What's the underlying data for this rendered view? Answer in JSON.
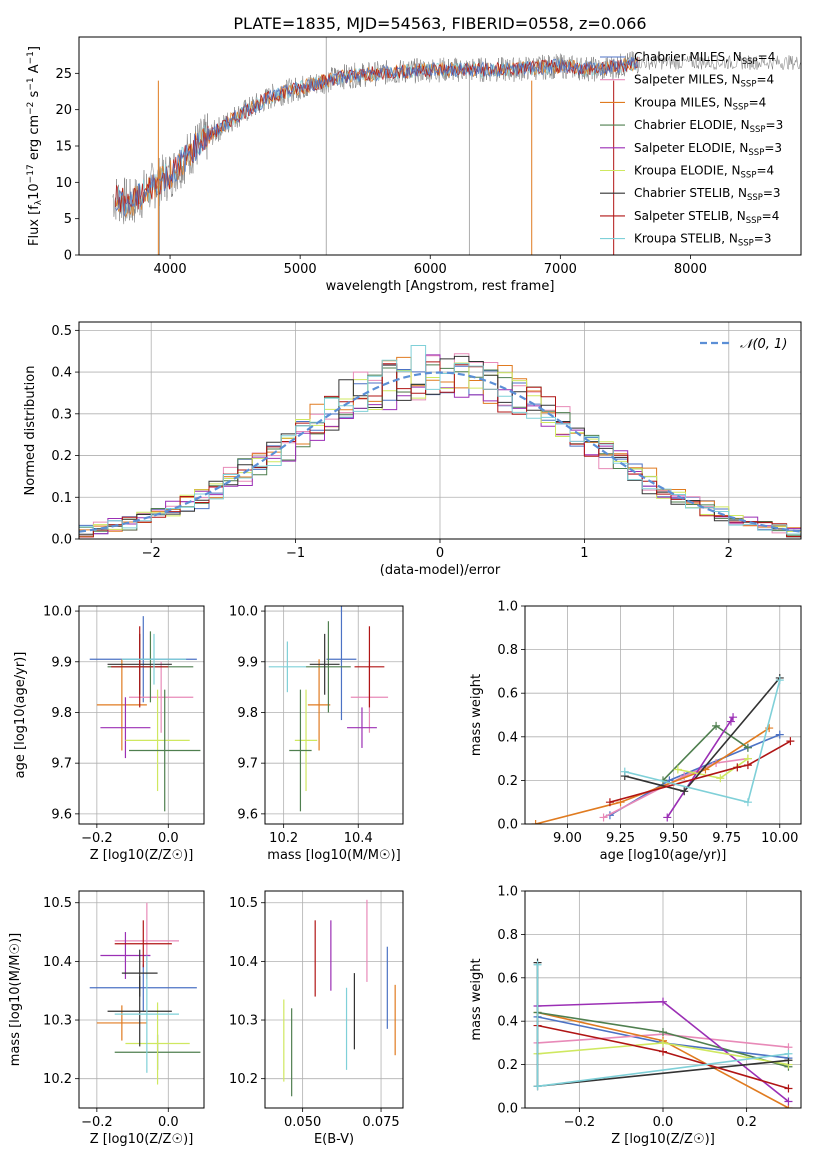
{
  "title": "PLATE=1835, MJD=54563, FIBERID=0558, z=0.066",
  "colors": {
    "Chabrier MILES": "#4c72c4",
    "Salpeter MILES": "#e88ab8",
    "Kroupa MILES": "#e07b20",
    "Chabrier ELODIE": "#4f7f4f",
    "Salpeter ELODIE": "#9b2fb5",
    "Kroupa ELODIE": "#cfe860",
    "Chabrier STELIB": "#333333",
    "Salpeter STELIB": "#b01515",
    "Kroupa STELIB": "#7fd0d8"
  },
  "chart_data": [
    {
      "id": "spectrum",
      "type": "line",
      "xlabel": "wavelength [Angstrom, rest frame]",
      "ylabel": "Flux [f_λ 10^-17 erg cm^-2 s^-1 A^-1]",
      "xlim": [
        3300,
        8850
      ],
      "ylim": [
        0,
        30
      ],
      "xticks": [
        4000,
        5000,
        6000,
        7000,
        8000
      ],
      "yticks": [
        0,
        5,
        10,
        15,
        20,
        25
      ],
      "legend": [
        {
          "name": "Chabrier MILES",
          "nssp": "4"
        },
        {
          "name": "Salpeter MILES",
          "nssp": "4"
        },
        {
          "name": "Kroupa MILES",
          "nssp": "4"
        },
        {
          "name": "Chabrier ELODIE",
          "nssp": "3"
        },
        {
          "name": "Salpeter ELODIE",
          "nssp": "3"
        },
        {
          "name": "Kroupa ELODIE",
          "nssp": "4"
        },
        {
          "name": "Chabrier STELIB",
          "nssp": "3"
        },
        {
          "name": "Salpeter STELIB",
          "nssp": "4"
        },
        {
          "name": "Kroupa STELIB",
          "nssp": "3"
        }
      ],
      "legend_nssp_label": "N",
      "legend_nssp_sub": "SSP",
      "continuum_x": [
        3560,
        3700,
        3900,
        4000,
        4200,
        4500,
        4800,
        5000,
        5300,
        5600,
        6000,
        6300,
        6600,
        7000,
        7300,
        7600
      ],
      "continuum_y": [
        8,
        7,
        10,
        11,
        15,
        19,
        22,
        23,
        24.5,
        25,
        25.5,
        25.5,
        25.5,
        26,
        25.5,
        26.5
      ]
    },
    {
      "id": "residuals",
      "type": "histogram",
      "xlabel": "(data-model)/error",
      "ylabel": "Normed distribution",
      "xlim": [
        -2.5,
        2.5
      ],
      "ylim": [
        0,
        0.52
      ],
      "xticks": [
        -2,
        -1,
        0,
        1,
        2
      ],
      "yticks": [
        0.0,
        0.1,
        0.2,
        0.3,
        0.4,
        0.5
      ],
      "grid": true,
      "legend": "N(0,1)",
      "bin_width": 0.1,
      "bin_start": -2.5,
      "series_order": [
        "Chabrier MILES",
        "Salpeter MILES",
        "Kroupa MILES",
        "Chabrier ELODIE",
        "Salpeter ELODIE",
        "Kroupa ELODIE",
        "Chabrier STELIB",
        "Salpeter STELIB",
        "Kroupa STELIB"
      ]
    },
    {
      "id": "age-vs-Z",
      "type": "errorbar",
      "xlabel": "Z [log10(Z/Z☉)]",
      "ylabel": "age [log10(age/yr)]",
      "xlim": [
        -0.25,
        0.1
      ],
      "ylim": [
        9.58,
        10.01
      ],
      "xticks": [
        -0.2,
        0.0
      ],
      "yticks": [
        9.6,
        9.7,
        9.8,
        9.9,
        10.0
      ],
      "points": [
        {
          "series": "Chabrier MILES",
          "x": -0.07,
          "xerr": 0.15,
          "y": 9.905,
          "yerr": 0.085
        },
        {
          "series": "Salpeter MILES",
          "x": -0.02,
          "xerr": 0.09,
          "y": 9.83,
          "yerr": 0.07
        },
        {
          "series": "Kroupa MILES",
          "x": -0.13,
          "xerr": 0.07,
          "y": 9.815,
          "yerr": 0.09
        },
        {
          "series": "Chabrier ELODIE",
          "x": -0.05,
          "xerr": 0.12,
          "y": 9.89,
          "yerr": 0.07
        },
        {
          "series": "Salpeter ELODIE",
          "x": -0.12,
          "xerr": 0.07,
          "y": 9.77,
          "yerr": 0.06
        },
        {
          "series": "Kroupa ELODIE",
          "x": -0.03,
          "xerr": 0.09,
          "y": 9.745,
          "yerr": 0.1
        },
        {
          "series": "Chabrier STELIB",
          "x": -0.08,
          "xerr": 0.09,
          "y": 9.895,
          "yerr": 0.06
        },
        {
          "series": "Salpeter STELIB",
          "x": -0.08,
          "xerr": 0.08,
          "y": 9.89,
          "yerr": 0.08
        },
        {
          "series": "Kroupa STELIB",
          "x": -0.04,
          "xerr": 0.09,
          "y": 9.905,
          "yerr": 0.05
        },
        {
          "series": "Chabrier ELODIE",
          "x": -0.01,
          "xerr": 0.1,
          "y": 9.725,
          "yerr": 0.12
        }
      ]
    },
    {
      "id": "age-vs-mass",
      "type": "errorbar",
      "xlabel": "mass [log10(M/M☉)]",
      "ylabel": "",
      "xlim": [
        10.15,
        10.52
      ],
      "ylim": [
        9.58,
        10.01
      ],
      "xticks": [
        10.2,
        10.4
      ],
      "yticks": [
        9.6,
        9.7,
        9.8,
        9.9,
        10.0
      ],
      "points": [
        {
          "series": "Chabrier MILES",
          "x": 10.355,
          "xerr": 0.04,
          "y": 9.905,
          "yerr": 0.12
        },
        {
          "series": "Salpeter MILES",
          "x": 10.43,
          "xerr": 0.05,
          "y": 9.83,
          "yerr": 0.07
        },
        {
          "series": "Kroupa MILES",
          "x": 10.295,
          "xerr": 0.03,
          "y": 9.815,
          "yerr": 0.09
        },
        {
          "series": "Chabrier ELODIE",
          "x": 10.32,
          "xerr": 0.06,
          "y": 9.89,
          "yerr": 0.09
        },
        {
          "series": "Salpeter ELODIE",
          "x": 10.41,
          "xerr": 0.04,
          "y": 9.77,
          "yerr": 0.04
        },
        {
          "series": "Kroupa ELODIE",
          "x": 10.26,
          "xerr": 0.03,
          "y": 9.745,
          "yerr": 0.1
        },
        {
          "series": "Chabrier STELIB",
          "x": 10.31,
          "xerr": 0.04,
          "y": 9.895,
          "yerr": 0.06
        },
        {
          "series": "Salpeter STELIB",
          "x": 10.43,
          "xerr": 0.04,
          "y": 9.89,
          "yerr": 0.08
        },
        {
          "series": "Kroupa STELIB",
          "x": 10.21,
          "xerr": 0.05,
          "y": 9.89,
          "yerr": 0.05
        },
        {
          "series": "Chabrier ELODIE",
          "x": 10.245,
          "xerr": 0.03,
          "y": 9.725,
          "yerr": 0.12
        }
      ]
    },
    {
      "id": "weight-vs-age",
      "type": "line",
      "xlabel": "age [log10(age/yr)]",
      "ylabel": "mass weight",
      "xlim": [
        8.8,
        10.1
      ],
      "ylim": [
        0,
        1
      ],
      "xticks": [
        9.0,
        9.25,
        9.5,
        9.75,
        10.0
      ],
      "yticks": [
        0.0,
        0.2,
        0.4,
        0.6,
        0.8,
        1.0
      ],
      "grid": true,
      "series": [
        {
          "name": "Chabrier MILES",
          "x": [
            9.2,
            9.48,
            9.85,
            10.0
          ],
          "y": [
            0.04,
            0.2,
            0.35,
            0.41
          ]
        },
        {
          "name": "Salpeter MILES",
          "x": [
            9.17,
            9.55,
            9.7,
            9.85
          ],
          "y": [
            0.03,
            0.22,
            0.28,
            0.3
          ]
        },
        {
          "name": "Kroupa MILES",
          "x": [
            8.85,
            9.25,
            9.65,
            9.95
          ],
          "y": [
            0.0,
            0.1,
            0.25,
            0.44
          ]
        },
        {
          "name": "Chabrier ELODIE",
          "x": [
            9.45,
            9.7,
            9.85
          ],
          "y": [
            0.2,
            0.45,
            0.35
          ]
        },
        {
          "name": "Salpeter ELODIE",
          "x": [
            9.47,
            9.78,
            9.77
          ],
          "y": [
            0.03,
            0.49,
            0.47
          ]
        },
        {
          "name": "Kroupa ELODIE",
          "x": [
            9.52,
            9.72,
            9.85
          ],
          "y": [
            0.25,
            0.21,
            0.3
          ]
        },
        {
          "name": "Chabrier STELIB",
          "x": [
            9.27,
            9.55,
            10.0
          ],
          "y": [
            0.22,
            0.15,
            0.67
          ]
        },
        {
          "name": "Salpeter STELIB",
          "x": [
            9.2,
            9.8,
            9.85,
            10.05
          ],
          "y": [
            0.1,
            0.26,
            0.27,
            0.38
          ]
        },
        {
          "name": "Kroupa STELIB",
          "x": [
            9.27,
            9.85,
            10.0
          ],
          "y": [
            0.24,
            0.1,
            0.66
          ]
        }
      ]
    },
    {
      "id": "mass-vs-Z",
      "type": "errorbar",
      "xlabel": "Z [log10(Z/Z☉)]",
      "ylabel": "mass [log10(M/M☉)]",
      "xlim": [
        -0.25,
        0.1
      ],
      "ylim": [
        10.15,
        10.52
      ],
      "xticks": [
        -0.2,
        0.0
      ],
      "yticks": [
        10.2,
        10.3,
        10.4,
        10.5
      ],
      "points": [
        {
          "series": "Chabrier MILES",
          "x": -0.07,
          "xerr": 0.15,
          "y": 10.355,
          "yerr": 0.04
        },
        {
          "series": "Salpeter MILES",
          "x": -0.06,
          "xerr": 0.09,
          "y": 10.435,
          "yerr": 0.065
        },
        {
          "series": "Kroupa MILES",
          "x": -0.13,
          "xerr": 0.07,
          "y": 10.295,
          "yerr": 0.03
        },
        {
          "series": "Chabrier ELODIE",
          "x": -0.03,
          "xerr": 0.12,
          "y": 10.245,
          "yerr": 0.03
        },
        {
          "series": "Salpeter ELODIE",
          "x": -0.12,
          "xerr": 0.07,
          "y": 10.41,
          "yerr": 0.04
        },
        {
          "series": "Kroupa ELODIE",
          "x": -0.03,
          "xerr": 0.09,
          "y": 10.26,
          "yerr": 0.07
        },
        {
          "series": "Chabrier STELIB",
          "x": -0.08,
          "xerr": 0.09,
          "y": 10.315,
          "yerr": 0.06
        },
        {
          "series": "Salpeter STELIB",
          "x": -0.07,
          "xerr": 0.08,
          "y": 10.43,
          "yerr": 0.04
        },
        {
          "series": "Kroupa STELIB",
          "x": -0.06,
          "xerr": 0.09,
          "y": 10.31,
          "yerr": 0.1
        },
        {
          "series": "Chabrier STELIB",
          "x": -0.08,
          "xerr": 0.05,
          "y": 10.38,
          "yerr": 0.04
        }
      ]
    },
    {
      "id": "mass-vs-ebv",
      "type": "errorbar",
      "xlabel": "E(B-V)",
      "ylabel": "",
      "xlim": [
        0.038,
        0.082
      ],
      "ylim": [
        10.15,
        10.52
      ],
      "xticks": [
        0.05,
        0.075
      ],
      "yticks": [
        10.2,
        10.3,
        10.4,
        10.5
      ],
      "points": [
        {
          "series": "Chabrier MILES",
          "x": 0.077,
          "xerr": 0,
          "y": 10.355,
          "yerr": 0.07
        },
        {
          "series": "Salpeter MILES",
          "x": 0.0705,
          "xerr": 0,
          "y": 10.435,
          "yerr": 0.07
        },
        {
          "series": "Kroupa MILES",
          "x": 0.0795,
          "xerr": 0,
          "y": 10.3,
          "yerr": 0.06
        },
        {
          "series": "Chabrier ELODIE",
          "x": 0.0465,
          "xerr": 0,
          "y": 10.245,
          "yerr": 0.075
        },
        {
          "series": "Salpeter ELODIE",
          "x": 0.059,
          "xerr": 0,
          "y": 10.41,
          "yerr": 0.06
        },
        {
          "series": "Kroupa ELODIE",
          "x": 0.044,
          "xerr": 0,
          "y": 10.265,
          "yerr": 0.07
        },
        {
          "series": "Chabrier STELIB",
          "x": 0.0665,
          "xerr": 0,
          "y": 10.315,
          "yerr": 0.065
        },
        {
          "series": "Salpeter STELIB",
          "x": 0.054,
          "xerr": 0,
          "y": 10.405,
          "yerr": 0.065
        },
        {
          "series": "Kroupa STELIB",
          "x": 0.064,
          "xerr": 0,
          "y": 10.285,
          "yerr": 0.07
        }
      ]
    },
    {
      "id": "weight-vs-Z",
      "type": "line",
      "xlabel": "Z [log10(Z/Z☉)]",
      "ylabel": "mass weight",
      "xlim": [
        -0.33,
        0.33
      ],
      "ylim": [
        0,
        1
      ],
      "xticks": [
        -0.2,
        0.0,
        0.2
      ],
      "yticks": [
        0.0,
        0.2,
        0.4,
        0.6,
        0.8,
        1.0
      ],
      "grid": true,
      "series": [
        {
          "name": "Chabrier MILES",
          "x": [
            -0.3,
            0.0,
            0.3
          ],
          "y": [
            0.42,
            0.3,
            0.23
          ]
        },
        {
          "name": "Salpeter MILES",
          "x": [
            -0.3,
            0.0,
            0.3
          ],
          "y": [
            0.3,
            0.34,
            0.28
          ]
        },
        {
          "name": "Kroupa MILES",
          "x": [
            -0.3,
            0.0,
            0.3
          ],
          "y": [
            0.44,
            0.31,
            0.0
          ]
        },
        {
          "name": "Chabrier ELODIE",
          "x": [
            -0.3,
            0.0,
            0.3
          ],
          "y": [
            0.44,
            0.35,
            0.19
          ]
        },
        {
          "name": "Salpeter ELODIE",
          "x": [
            -0.3,
            0.0,
            0.3
          ],
          "y": [
            0.47,
            0.49,
            0.03
          ]
        },
        {
          "name": "Kroupa ELODIE",
          "x": [
            -0.3,
            0.0,
            0.3
          ],
          "y": [
            0.25,
            0.3,
            0.2
          ]
        },
        {
          "name": "Chabrier STELIB",
          "x": [
            -0.3,
            -0.3,
            0.3
          ],
          "y": [
            0.67,
            0.1,
            0.22
          ]
        },
        {
          "name": "Salpeter STELIB",
          "x": [
            -0.3,
            0.0,
            0.3
          ],
          "y": [
            0.38,
            0.26,
            0.09
          ]
        },
        {
          "name": "Kroupa STELIB",
          "x": [
            -0.3,
            -0.3,
            0.3
          ],
          "y": [
            0.66,
            0.1,
            0.25
          ]
        }
      ]
    }
  ]
}
